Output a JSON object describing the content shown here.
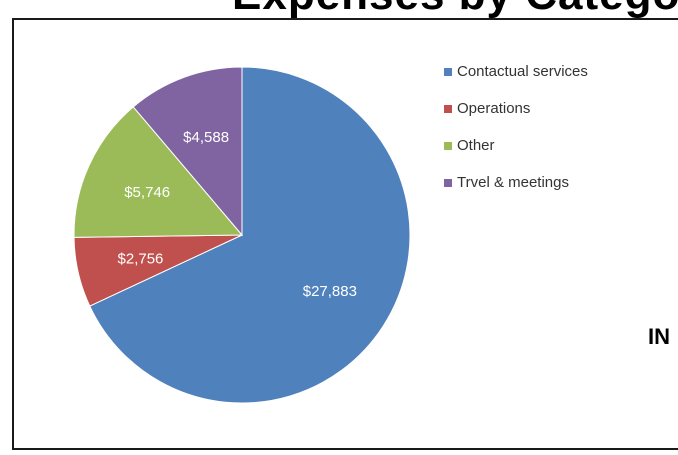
{
  "header": {
    "cropped_title": "Expenses by Category"
  },
  "side_text": "IN",
  "chart_data": {
    "type": "pie",
    "title": "",
    "slices": [
      {
        "label": "Contactual services",
        "value": 27883,
        "display": "$27,883",
        "color": "#4f81bd"
      },
      {
        "label": "Operations",
        "value": 2756,
        "display": "$2,756",
        "color": "#c0504d"
      },
      {
        "label": "Other",
        "value": 5746,
        "display": "$5,746",
        "color": "#9bbb59"
      },
      {
        "label": "Trvel & meetings",
        "value": 4588,
        "display": "$4,588",
        "color": "#8064a2"
      }
    ],
    "legend_position": "right"
  }
}
